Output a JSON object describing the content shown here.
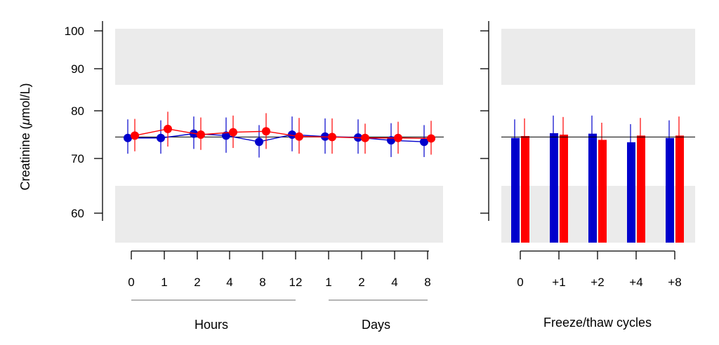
{
  "chart_data": [
    {
      "type": "line",
      "ylabel_prefix": "Creatinine (",
      "ylabel_mu": "μ",
      "ylabel_suffix": "mol/L)",
      "yticks": [
        60,
        70,
        80,
        90,
        100
      ],
      "ylim": [
        54,
        100
      ],
      "reference_line": 74.5,
      "shaded_bands": [
        [
          54,
          65
        ],
        [
          86,
          100
        ]
      ],
      "tick_labels": [
        "0",
        "1",
        "2",
        "4",
        "8",
        "12",
        "1",
        "2",
        "4",
        "8"
      ],
      "groups": [
        {
          "label": "Hours",
          "from": 0,
          "to": 5
        },
        {
          "label": "Days",
          "from": 6,
          "to": 9
        }
      ],
      "series": [
        {
          "color": "#0000cc",
          "values": [
            74.3,
            74.3,
            75.2,
            74.8,
            73.5,
            75.0,
            74.6,
            74.4,
            73.8,
            73.5
          ],
          "err_low": [
            71.0,
            71.0,
            72.0,
            71.2,
            70.2,
            71.5,
            71.0,
            71.0,
            70.3,
            70.3
          ],
          "err_high": [
            78.2,
            78.0,
            78.8,
            78.6,
            77.0,
            78.8,
            78.4,
            78.2,
            77.4,
            77.0
          ]
        },
        {
          "color": "#ff0000",
          "values": [
            74.8,
            76.2,
            75.0,
            75.5,
            75.7,
            74.6,
            74.5,
            74.3,
            74.3,
            74.2
          ],
          "err_low": [
            71.5,
            72.5,
            71.8,
            72.2,
            72.0,
            71.0,
            71.0,
            71.0,
            71.0,
            70.8
          ],
          "err_high": [
            78.3,
            79.8,
            78.6,
            79.0,
            79.5,
            78.5,
            78.4,
            77.3,
            77.7,
            77.9
          ]
        }
      ]
    },
    {
      "type": "bar",
      "categories": [
        "0",
        "+1",
        "+2",
        "+4",
        "+8"
      ],
      "xlabel": "Freeze/thaw cycles",
      "ylim": [
        54,
        100
      ],
      "reference_line": 74.5,
      "shaded_bands": [
        [
          54,
          65
        ],
        [
          86,
          100
        ]
      ],
      "series": [
        {
          "color": "#0000cc",
          "values": [
            74.3,
            75.3,
            75.2,
            73.4,
            74.3
          ],
          "err_low": [
            71.0,
            71.8,
            71.5,
            70.0,
            71.0
          ],
          "err_high": [
            78.2,
            79.0,
            79.0,
            77.2,
            78.0
          ]
        },
        {
          "color": "#ff0000",
          "values": [
            74.7,
            75.0,
            73.9,
            74.8,
            74.8
          ],
          "err_low": [
            71.2,
            71.3,
            70.5,
            71.0,
            71.0
          ],
          "err_high": [
            78.4,
            78.7,
            77.5,
            78.5,
            78.8
          ]
        }
      ]
    }
  ]
}
